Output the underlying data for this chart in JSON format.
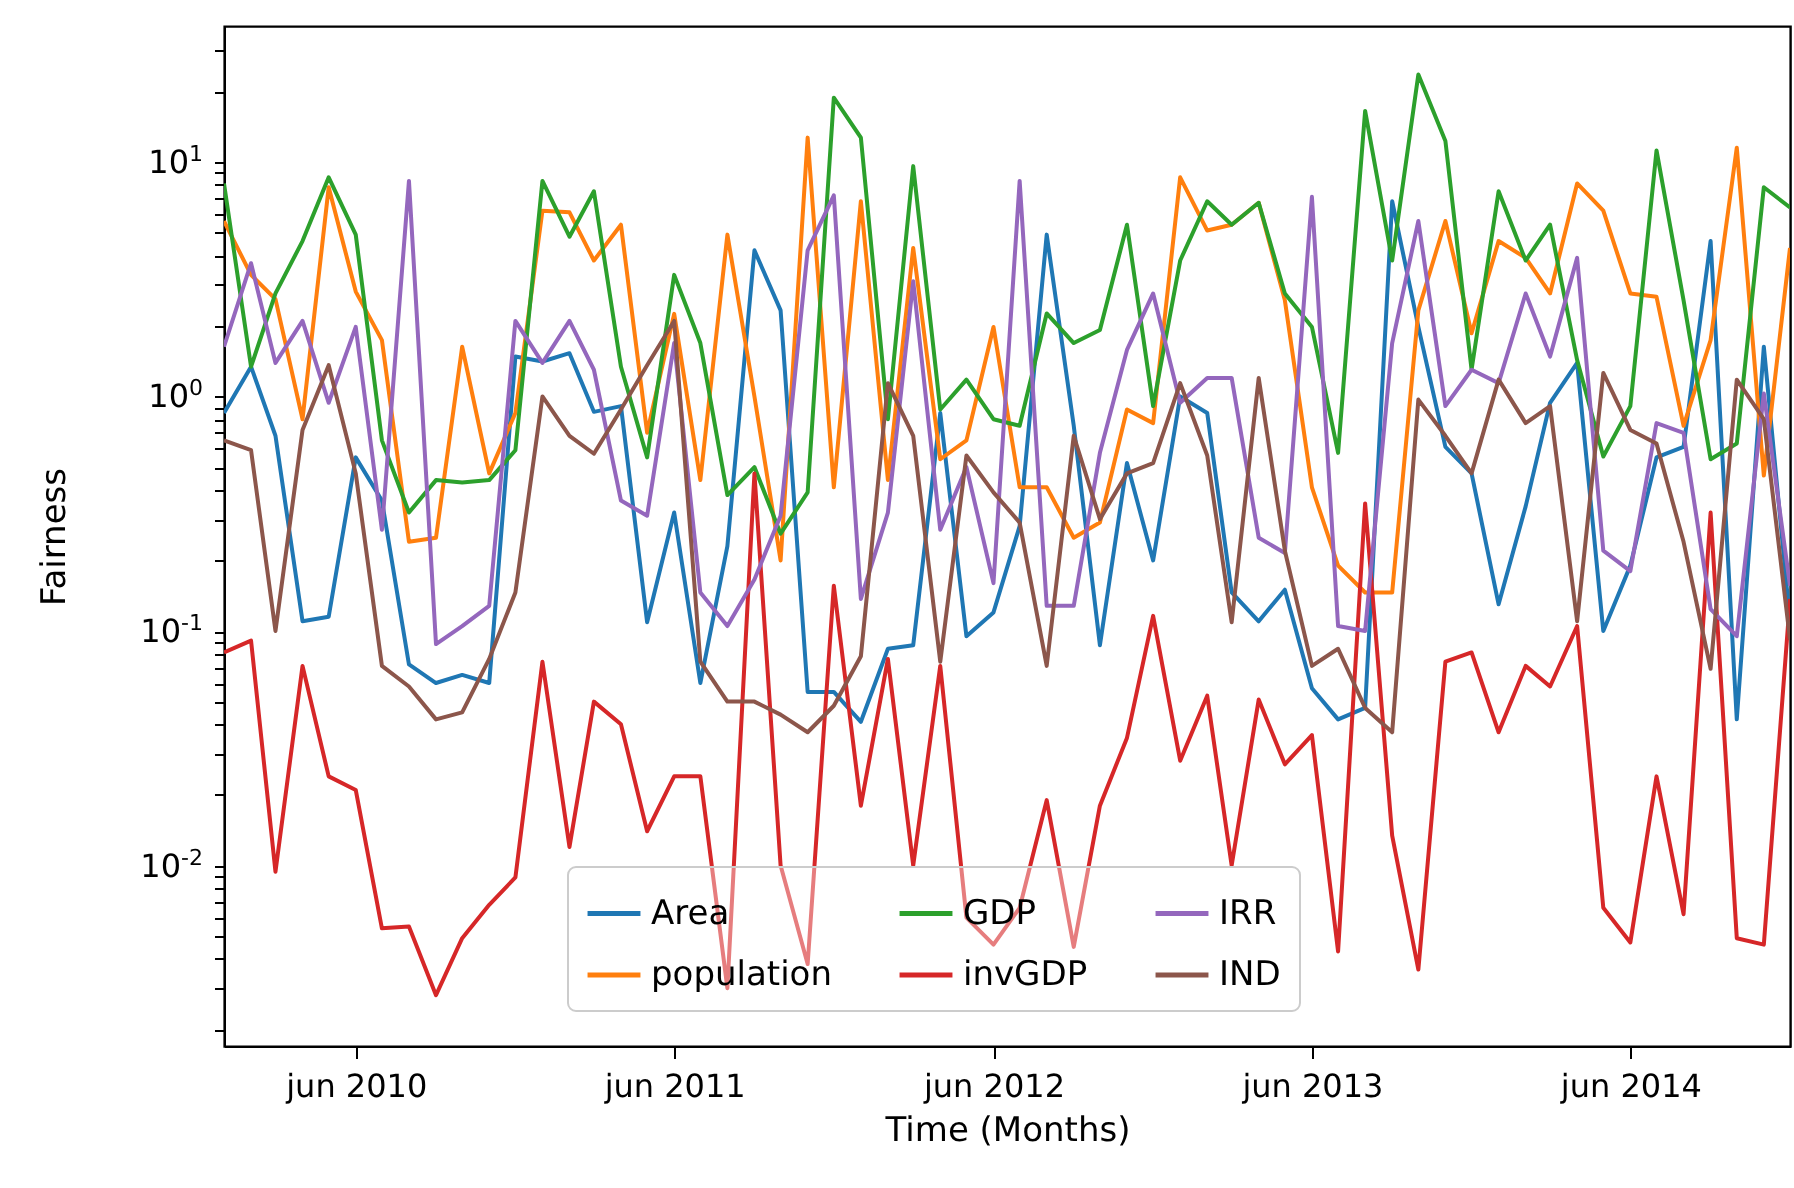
{
  "chart_data": {
    "type": "line",
    "xlabel": "Time (Months)",
    "ylabel": "Fairness",
    "log": "y",
    "legend": "bottom",
    "x": [
      "2010-01",
      "2010-02",
      "2010-03",
      "2010-04",
      "2010-05",
      "2010-06",
      "2010-07",
      "2010-08",
      "2010-09",
      "2010-10",
      "2010-11",
      "2010-12",
      "2011-01",
      "2011-02",
      "2011-03",
      "2011-04",
      "2011-05",
      "2011-06",
      "2011-07",
      "2011-08",
      "2011-09",
      "2011-10",
      "2011-11",
      "2011-12",
      "2012-01",
      "2012-02",
      "2012-03",
      "2012-04",
      "2012-05",
      "2012-06",
      "2012-07",
      "2012-08",
      "2012-09",
      "2012-10",
      "2012-11",
      "2012-12",
      "2013-01",
      "2013-02",
      "2013-03",
      "2013-04",
      "2013-05",
      "2013-06",
      "2013-07",
      "2013-08",
      "2013-09",
      "2013-10",
      "2013-11",
      "2013-12",
      "2014-01",
      "2014-02",
      "2014-03",
      "2014-04",
      "2014-05",
      "2014-06",
      "2014-07",
      "2014-08",
      "2014-09",
      "2014-10",
      "2014-11",
      "2014-12"
    ],
    "xlim": [
      "2010-01",
      "2014-12"
    ],
    "xticks": [
      {
        "value": "2010-06",
        "label": "jun 2010"
      },
      {
        "value": "2011-06",
        "label": "jun 2011"
      },
      {
        "value": "2012-06",
        "label": "jun 2012"
      },
      {
        "value": "2013-06",
        "label": "jun 2013"
      },
      {
        "value": "2014-06",
        "label": "jun 2014"
      }
    ],
    "ylim": [
      0.0017,
      38
    ],
    "yticks": [
      {
        "value": 0.002,
        "label": null
      },
      {
        "value": 0.003,
        "label": null
      },
      {
        "value": 0.004,
        "label": null
      },
      {
        "value": 0.005,
        "label": null
      },
      {
        "value": 0.006,
        "label": null
      },
      {
        "value": 0.007,
        "label": null
      },
      {
        "value": 0.008,
        "label": null
      },
      {
        "value": 0.009,
        "label": null
      },
      {
        "value": 0.01,
        "label": "10$^{-2}$"
      },
      {
        "value": 0.02,
        "label": null
      },
      {
        "value": 0.03,
        "label": null
      },
      {
        "value": 0.04,
        "label": null
      },
      {
        "value": 0.05,
        "label": null
      },
      {
        "value": 0.06,
        "label": null
      },
      {
        "value": 0.07,
        "label": null
      },
      {
        "value": 0.08,
        "label": null
      },
      {
        "value": 0.09,
        "label": null
      },
      {
        "value": 0.1,
        "label": "10$^{-1}$"
      },
      {
        "value": 0.2,
        "label": null
      },
      {
        "value": 0.3,
        "label": null
      },
      {
        "value": 0.4,
        "label": null
      },
      {
        "value": 0.5,
        "label": null
      },
      {
        "value": 0.6,
        "label": null
      },
      {
        "value": 0.7,
        "label": null
      },
      {
        "value": 0.8,
        "label": null
      },
      {
        "value": 0.9,
        "label": null
      },
      {
        "value": 1,
        "label": "10$^{0}$"
      },
      {
        "value": 2,
        "label": null
      },
      {
        "value": 3,
        "label": null
      },
      {
        "value": 4,
        "label": null
      },
      {
        "value": 5,
        "label": null
      },
      {
        "value": 6,
        "label": null
      },
      {
        "value": 7,
        "label": null
      },
      {
        "value": 8,
        "label": null
      },
      {
        "value": 9,
        "label": null
      },
      {
        "value": 10,
        "label": "10$^{1}$"
      },
      {
        "value": 20,
        "label": null
      },
      {
        "value": 30,
        "label": null
      }
    ],
    "series": [
      {
        "name": "Area",
        "color": "#1f77b4",
        "values": [
          0.85,
          1.34,
          0.68,
          0.11,
          0.115,
          0.55,
          0.36,
          0.072,
          0.06,
          0.065,
          0.06,
          1.48,
          1.41,
          1.53,
          0.86,
          0.91,
          0.109,
          0.32,
          0.06,
          0.23,
          4.2,
          2.33,
          0.055,
          0.055,
          0.041,
          0.084,
          0.087,
          0.85,
          0.095,
          0.12,
          0.28,
          4.9,
          0.75,
          0.087,
          0.52,
          0.2,
          1.0,
          0.85,
          0.146,
          0.11,
          0.15,
          0.057,
          0.042,
          0.047,
          6.8,
          1.98,
          0.61,
          0.47,
          0.13,
          0.34,
          0.94,
          1.39,
          0.1,
          0.19,
          0.55,
          0.61,
          4.6,
          0.042,
          1.63,
          0.11
        ]
      },
      {
        "name": "population",
        "color": "#ff7f0e",
        "values": [
          5.6,
          3.3,
          2.6,
          0.8,
          7.8,
          2.8,
          1.74,
          0.24,
          0.25,
          1.63,
          0.47,
          0.85,
          6.2,
          6.1,
          3.8,
          5.4,
          0.7,
          2.25,
          0.44,
          4.9,
          1.0,
          0.2,
          12.7,
          0.41,
          6.8,
          0.44,
          4.3,
          0.54,
          0.65,
          1.98,
          0.41,
          0.41,
          0.25,
          0.29,
          0.88,
          0.77,
          8.6,
          5.1,
          5.4,
          6.7,
          2.57,
          0.41,
          0.19,
          0.146,
          0.146,
          2.33,
          5.6,
          1.86,
          4.6,
          3.9,
          2.75,
          8.1,
          6.2,
          2.75,
          2.66,
          0.75,
          1.74,
          11.5,
          0.46,
          4.3
        ]
      },
      {
        "name": "GDP",
        "color": "#2ca02c",
        "values": [
          8.1,
          1.34,
          2.75,
          4.6,
          8.6,
          4.9,
          0.65,
          0.32,
          0.44,
          0.43,
          0.44,
          0.59,
          8.3,
          4.8,
          7.5,
          1.34,
          0.55,
          3.3,
          1.69,
          0.38,
          0.5,
          0.26,
          0.39,
          18.8,
          12.7,
          0.8,
          9.6,
          0.88,
          1.18,
          0.8,
          0.75,
          2.26,
          1.69,
          1.92,
          5.4,
          0.91,
          3.8,
          6.8,
          5.4,
          6.7,
          2.75,
          1.98,
          0.575,
          16.5,
          3.8,
          23.6,
          12.3,
          1.3,
          7.5,
          3.8,
          5.4,
          1.43,
          0.555,
          0.91,
          11.2,
          2.57,
          0.54,
          0.63,
          7.8,
          6.4
        ]
      },
      {
        "name": "invGDP",
        "color": "#d62728",
        "values": [
          0.081,
          0.091,
          0.0094,
          0.071,
          0.024,
          0.021,
          0.0054,
          0.0055,
          0.0028,
          0.0049,
          0.0068,
          0.0089,
          0.074,
          0.012,
          0.05,
          0.04,
          0.014,
          0.024,
          0.024,
          0.003,
          0.47,
          0.01,
          0.0038,
          0.156,
          0.018,
          0.076,
          0.01,
          0.071,
          0.006,
          0.0046,
          0.0066,
          0.019,
          0.0045,
          0.018,
          0.035,
          0.116,
          0.028,
          0.053,
          0.01,
          0.051,
          0.027,
          0.036,
          0.0043,
          0.35,
          0.0134,
          0.0036,
          0.074,
          0.081,
          0.037,
          0.071,
          0.058,
          0.105,
          0.0066,
          0.0047,
          0.024,
          0.0062,
          0.32,
          0.0049,
          0.0046,
          0.137
        ]
      },
      {
        "name": "IRR",
        "color": "#9467bd",
        "values": [
          1.63,
          3.7,
          1.39,
          2.1,
          0.94,
          1.98,
          0.27,
          8.3,
          0.088,
          0.105,
          0.128,
          2.1,
          1.39,
          2.1,
          1.3,
          0.36,
          0.31,
          1.69,
          0.146,
          0.105,
          0.166,
          0.31,
          4.2,
          7.2,
          0.137,
          0.32,
          3.1,
          0.27,
          0.5,
          0.16,
          8.3,
          0.128,
          0.128,
          0.575,
          1.58,
          2.75,
          0.94,
          1.2,
          1.2,
          0.25,
          0.215,
          7.1,
          0.105,
          0.1,
          1.69,
          5.6,
          0.91,
          1.3,
          1.14,
          2.75,
          1.48,
          3.9,
          0.22,
          0.18,
          0.77,
          0.7,
          0.124,
          0.095,
          1.03,
          0.156
        ]
      },
      {
        "name": "IND",
        "color": "#8c564b",
        "values": [
          0.65,
          0.59,
          0.1,
          0.72,
          1.36,
          0.47,
          0.071,
          0.058,
          0.042,
          0.045,
          0.076,
          0.146,
          1.0,
          0.68,
          0.57,
          0.88,
          1.36,
          2.1,
          0.074,
          0.05,
          0.05,
          0.044,
          0.037,
          0.048,
          0.078,
          1.14,
          0.68,
          0.074,
          0.56,
          0.39,
          0.29,
          0.071,
          0.68,
          0.3,
          0.47,
          0.52,
          1.14,
          0.56,
          0.109,
          1.2,
          0.22,
          0.071,
          0.084,
          0.047,
          0.037,
          0.97,
          0.68,
          0.47,
          1.18,
          0.77,
          0.91,
          0.11,
          1.26,
          0.72,
          0.63,
          0.24,
          0.069,
          1.18,
          0.8,
          0.092
        ]
      }
    ]
  }
}
